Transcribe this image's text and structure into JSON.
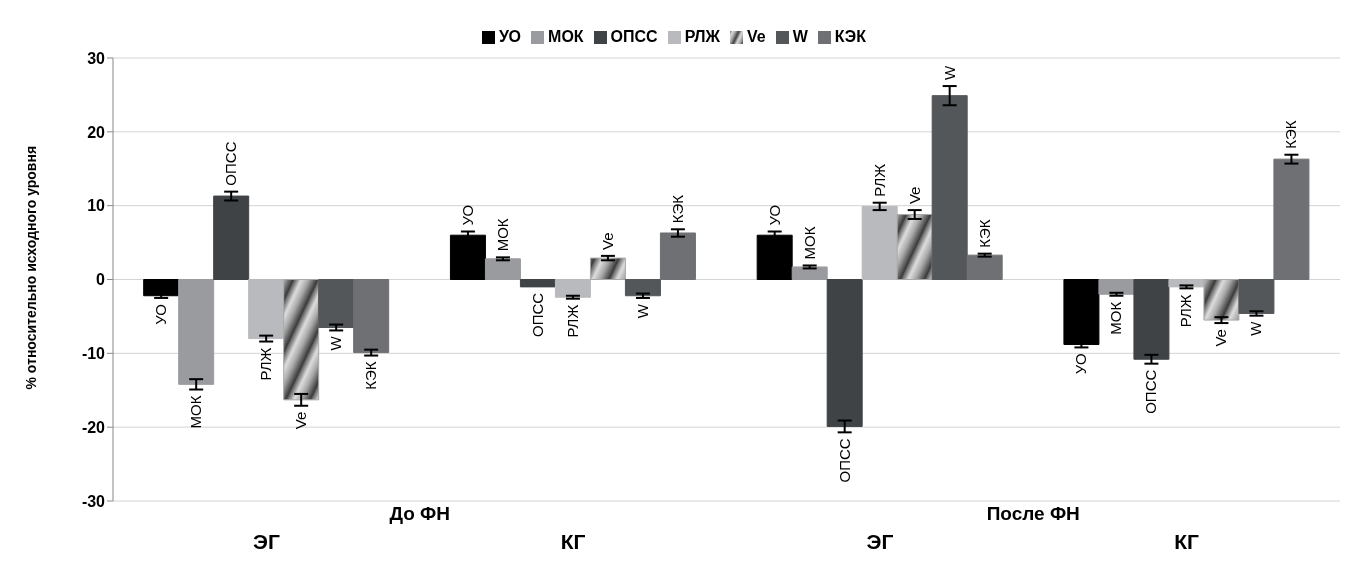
{
  "chart_data": {
    "type": "bar",
    "ylabel": "% относительно исходного уровня",
    "categories": [
      "ЭГ",
      "КГ",
      "ЭГ",
      "КГ"
    ],
    "annotations": [
      "До ФН",
      "После ФН"
    ],
    "ylim": [
      -30,
      30
    ],
    "yticks": [
      -30,
      -20,
      -10,
      0,
      10,
      20,
      30
    ],
    "grid": "y",
    "legend": "top",
    "series": [
      {
        "name": "УО",
        "color": "#000000",
        "values": [
          -2.2,
          6.0,
          6.0,
          -8.8
        ],
        "errors": [
          0.3,
          0.5,
          0.5,
          0.4
        ]
      },
      {
        "name": "МОК",
        "color": "#9a9b9f",
        "values": [
          -14.2,
          2.8,
          1.7,
          -2.0
        ],
        "errors": [
          0.7,
          0.2,
          0.2,
          0.2
        ]
      },
      {
        "name": "ОПСС",
        "color": "#404346",
        "values": [
          11.3,
          -1.0,
          -19.9,
          -10.8
        ],
        "errors": [
          0.6,
          null,
          0.8,
          0.6
        ]
      },
      {
        "name": "РЛЖ",
        "color": "#b9babd",
        "values": [
          -8.0,
          -2.4,
          9.9,
          -1.0
        ],
        "errors": [
          0.4,
          0.2,
          0.5,
          0.2
        ]
      },
      {
        "name": "Ve",
        "color": "#a8a8a8",
        "values": [
          -16.3,
          2.9,
          8.8,
          -5.5
        ],
        "errors": [
          0.8,
          0.3,
          0.6,
          0.4
        ]
      },
      {
        "name": "W",
        "color": "#54575a",
        "values": [
          -6.5,
          -2.2,
          24.9,
          -4.6
        ],
        "errors": [
          0.4,
          0.3,
          1.3,
          0.3
        ]
      },
      {
        "name": "КЭК",
        "color": "#6e7073",
        "values": [
          -9.9,
          6.3,
          3.3,
          16.3
        ],
        "errors": [
          0.4,
          0.5,
          0.2,
          0.6
        ]
      }
    ]
  }
}
